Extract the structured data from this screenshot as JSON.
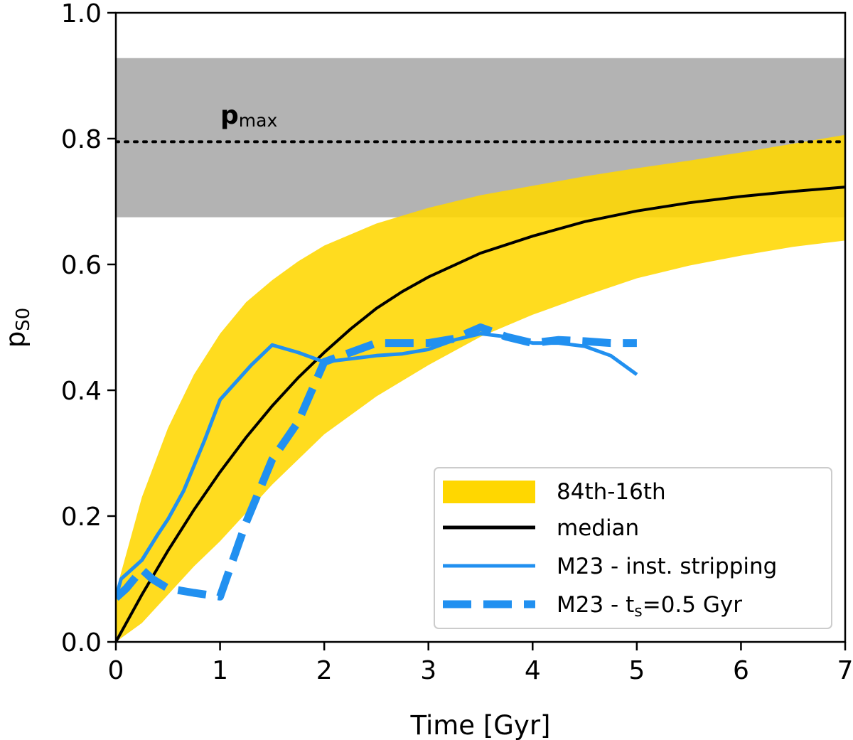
{
  "chart_data": {
    "type": "line",
    "xlabel": "Time [Gyr]",
    "ylabel": {
      "main": "p",
      "sub": "S0"
    },
    "xlim": [
      0,
      7
    ],
    "ylim": [
      0,
      1.0
    ],
    "xticks": [
      "0",
      "1",
      "2",
      "3",
      "4",
      "5",
      "6",
      "7"
    ],
    "yticks": [
      "0.0",
      "0.2",
      "0.4",
      "0.6",
      "0.8",
      "1.0"
    ],
    "grid": false,
    "legend_position": "lower-right",
    "band_gray": {
      "y_low": 0.675,
      "y_high": 0.928,
      "color": "#b3b3b3"
    },
    "pmax": {
      "label_main": "p",
      "label_sub": "max",
      "y": 0.795,
      "style": "dotted"
    },
    "band_84_16": {
      "name": "84th-16th",
      "color": "#FFD700",
      "x": [
        0,
        0.25,
        0.5,
        0.75,
        1,
        1.25,
        1.5,
        1.75,
        2,
        2.5,
        3,
        3.5,
        4,
        4.5,
        5,
        5.5,
        6,
        6.5,
        7
      ],
      "upper": [
        0.08,
        0.23,
        0.34,
        0.425,
        0.49,
        0.54,
        0.575,
        0.605,
        0.63,
        0.665,
        0.69,
        0.71,
        0.725,
        0.74,
        0.753,
        0.765,
        0.778,
        0.792,
        0.806
      ],
      "lower": [
        0.0,
        0.03,
        0.075,
        0.12,
        0.16,
        0.205,
        0.25,
        0.29,
        0.33,
        0.39,
        0.44,
        0.485,
        0.52,
        0.55,
        0.578,
        0.598,
        0.614,
        0.628,
        0.638
      ]
    },
    "series": [
      {
        "name": "median",
        "color": "#000000",
        "style": "solid",
        "x": [
          0,
          0.25,
          0.5,
          0.75,
          1,
          1.25,
          1.5,
          1.75,
          2,
          2.25,
          2.5,
          2.75,
          3,
          3.5,
          4,
          4.5,
          5,
          5.5,
          6,
          6.5,
          7
        ],
        "values": [
          0.0,
          0.075,
          0.145,
          0.21,
          0.27,
          0.325,
          0.375,
          0.42,
          0.46,
          0.497,
          0.53,
          0.557,
          0.58,
          0.618,
          0.645,
          0.668,
          0.685,
          0.698,
          0.708,
          0.716,
          0.723
        ]
      },
      {
        "name": "M23 - inst. stripping",
        "color": "#2190F0",
        "style": "solid",
        "x": [
          0,
          0.05,
          0.25,
          0.4,
          0.5,
          0.65,
          0.85,
          1.0,
          1.3,
          1.5,
          1.75,
          2.0,
          2.25,
          2.5,
          2.75,
          3.0,
          3.25,
          3.5,
          3.75,
          4.0,
          4.25,
          4.5,
          4.75,
          5.0
        ],
        "values": [
          0.07,
          0.1,
          0.13,
          0.17,
          0.195,
          0.24,
          0.32,
          0.385,
          0.44,
          0.472,
          0.46,
          0.445,
          0.45,
          0.455,
          0.458,
          0.465,
          0.48,
          0.49,
          0.485,
          0.475,
          0.475,
          0.47,
          0.455,
          0.425
        ]
      },
      {
        "name": "M23 - t_s=0.5 Gyr",
        "legend_main": "M23 - t",
        "legend_sub": "s",
        "legend_tail": "=0.5 Gyr",
        "color": "#2190F0",
        "style": "dashed",
        "x": [
          0,
          0.1,
          0.25,
          0.35,
          0.5,
          0.75,
          1.0,
          1.25,
          1.5,
          1.75,
          2.0,
          2.25,
          2.5,
          2.75,
          3.0,
          3.25,
          3.5,
          3.75,
          4.0,
          4.25,
          4.5,
          4.75,
          5.0
        ],
        "values": [
          0.07,
          0.085,
          0.115,
          0.1,
          0.085,
          0.078,
          0.072,
          0.19,
          0.29,
          0.35,
          0.445,
          0.46,
          0.475,
          0.475,
          0.475,
          0.482,
          0.5,
          0.485,
          0.475,
          0.48,
          0.478,
          0.475,
          0.475
        ]
      }
    ],
    "legend": [
      {
        "label": "84th-16th"
      },
      {
        "label": "median"
      },
      {
        "label": "M23 - inst. stripping"
      },
      {
        "label_main": "M23 - t",
        "label_sub": "s",
        "label_tail": "=0.5 Gyr"
      }
    ]
  }
}
